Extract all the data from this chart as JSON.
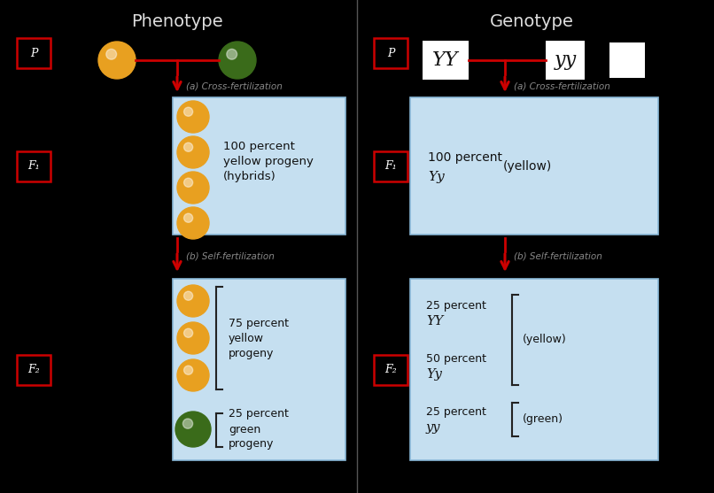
{
  "bg_color": "#000000",
  "panel_color": "#c5dff0",
  "panel_border_color": "#8ab8d8",
  "title_left": "Phenotype",
  "title_right": "Genotype",
  "title_color": "#dddddd",
  "title_fontsize": 14,
  "red_arrow_color": "#cc0000",
  "cross_label_left_1": "(a) Cross-fertilization",
  "cross_label_left_2": "(b) Self-fertilization",
  "cross_label_right_1": "(a) Cross-fertilization",
  "cross_label_right_2": "(b) Self-fertilization",
  "yellow_color": "#e8a020",
  "green_color": "#3a6b1a",
  "white_color": "#ffffff",
  "label_color": "#111111",
  "generation_P": "P",
  "generation_F1": "F₁",
  "generation_F2": "F₂",
  "mid_line_color": "#444444"
}
